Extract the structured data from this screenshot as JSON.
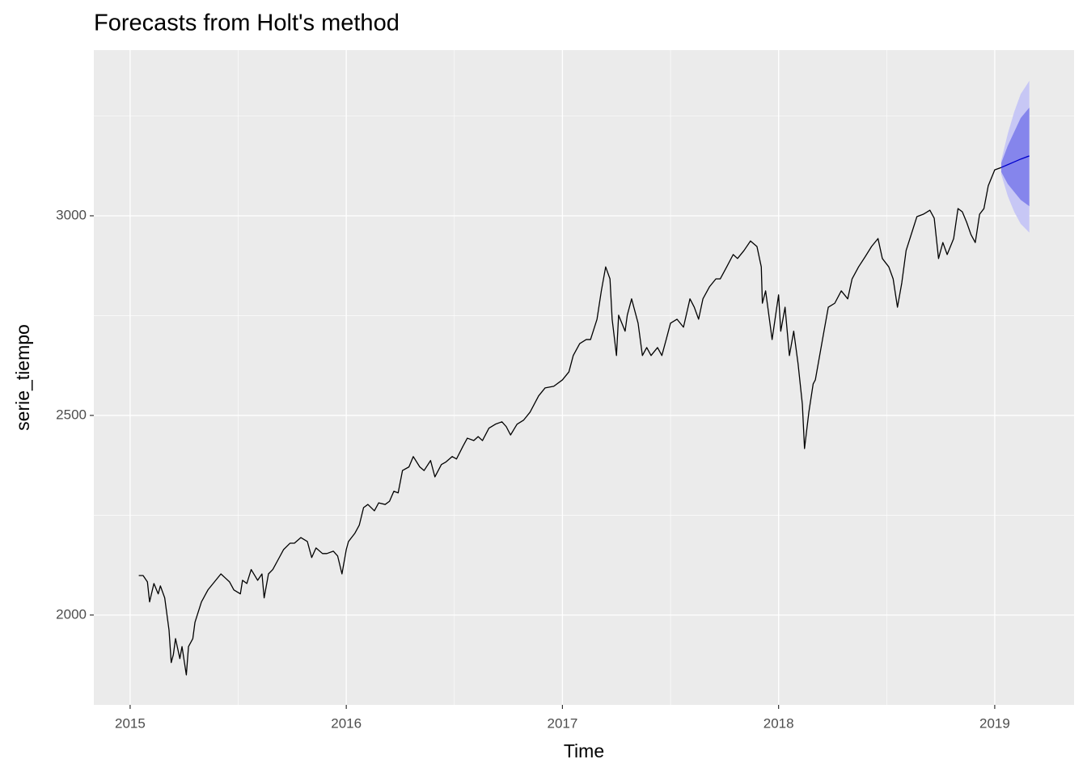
{
  "chart_data": {
    "type": "line",
    "title": "Forecasts from Holt's method",
    "xlabel": "Time",
    "ylabel": "serie_tiempo",
    "xlim": [
      2014.832,
      2019.367
    ],
    "ylim": [
      1775,
      3415
    ],
    "xticks": [
      2015,
      2016,
      2017,
      2018,
      2019
    ],
    "yticks": [
      2000,
      2500,
      3000
    ],
    "x_minor_ticks": [
      2015.5,
      2016.5,
      2017.5,
      2018.5
    ],
    "y_minor_ticks": [
      2250,
      2750,
      3250
    ],
    "grid": true,
    "series": [
      {
        "color": "#000000",
        "x": [
          2015.04,
          2015.06,
          2015.08,
          2015.09,
          2015.11,
          2015.13,
          2015.14,
          2015.16,
          2015.18,
          2015.19,
          2015.2,
          2015.21,
          2015.23,
          2015.24,
          2015.26,
          2015.27,
          2015.29,
          2015.3,
          2015.33,
          2015.34,
          2015.36,
          2015.39,
          2015.42,
          2015.44,
          2015.46,
          2015.48,
          2015.51,
          2015.52,
          2015.54,
          2015.56,
          2015.59,
          2015.61,
          2015.62,
          2015.64,
          2015.66,
          2015.69,
          2015.71,
          2015.74,
          2015.76,
          2015.79,
          2015.82,
          2015.84,
          2015.86,
          2015.89,
          2015.91,
          2015.94,
          2015.96,
          2015.98,
          2016.0,
          2016.01,
          2016.04,
          2016.06,
          2016.08,
          2016.1,
          2016.13,
          2016.15,
          2016.18,
          2016.2,
          2016.22,
          2016.24,
          2016.26,
          2016.29,
          2016.31,
          2016.34,
          2016.36,
          2016.39,
          2016.41,
          2016.44,
          2016.46,
          2016.49,
          2016.51,
          2016.54,
          2016.56,
          2016.59,
          2016.61,
          2016.63,
          2016.66,
          2016.69,
          2016.72,
          2016.74,
          2016.76,
          2016.79,
          2016.82,
          2016.85,
          2016.89,
          2016.92,
          2016.96,
          2017.0,
          2017.03,
          2017.05,
          2017.08,
          2017.11,
          2017.13,
          2017.16,
          2017.18,
          2017.2,
          2017.22,
          2017.23,
          2017.25,
          2017.26,
          2017.29,
          2017.3,
          2017.32,
          2017.35,
          2017.37,
          2017.39,
          2017.41,
          2017.44,
          2017.46,
          2017.48,
          2017.5,
          2017.53,
          2017.56,
          2017.59,
          2017.61,
          2017.63,
          2017.65,
          2017.68,
          2017.71,
          2017.73,
          2017.76,
          2017.79,
          2017.81,
          2017.84,
          2017.87,
          2017.9,
          2017.92,
          2017.925,
          2017.94,
          2017.96,
          2017.97,
          2018.0,
          2018.01,
          2018.03,
          2018.05,
          2018.07,
          2018.09,
          2018.11,
          2018.12,
          2018.14,
          2018.16,
          2018.17,
          2018.19,
          2018.21,
          2018.23,
          2018.26,
          2018.29,
          2018.32,
          2018.34,
          2018.37,
          2018.4,
          2018.43,
          2018.46,
          2018.48,
          2018.51,
          2018.53,
          2018.55,
          2018.57,
          2018.59,
          2018.62,
          2018.64,
          2018.67,
          2018.7,
          2018.72,
          2018.74,
          2018.76,
          2018.78,
          2018.81,
          2018.83,
          2018.85,
          2018.87,
          2018.89,
          2018.91,
          2018.93,
          2018.95,
          2018.97,
          2019.0,
          2019.03
        ],
        "values": [
          2099,
          2099,
          2083,
          2033,
          2079,
          2053,
          2073,
          2043,
          1962,
          1881,
          1901,
          1941,
          1891,
          1921,
          1850,
          1921,
          1941,
          1982,
          2033,
          2043,
          2063,
          2083,
          2103,
          2093,
          2083,
          2063,
          2053,
          2087,
          2079,
          2114,
          2087,
          2103,
          2043,
          2103,
          2114,
          2144,
          2164,
          2180,
          2180,
          2194,
          2184,
          2144,
          2168,
          2154,
          2154,
          2160,
          2148,
          2103,
          2164,
          2184,
          2205,
          2225,
          2269,
          2277,
          2261,
          2281,
          2277,
          2285,
          2310,
          2306,
          2362,
          2371,
          2397,
          2371,
          2362,
          2387,
          2346,
          2377,
          2383,
          2397,
          2391,
          2423,
          2443,
          2437,
          2447,
          2437,
          2468,
          2478,
          2484,
          2472,
          2451,
          2478,
          2488,
          2508,
          2549,
          2569,
          2573,
          2589,
          2609,
          2650,
          2680,
          2690,
          2690,
          2741,
          2812,
          2872,
          2842,
          2741,
          2650,
          2751,
          2711,
          2751,
          2792,
          2731,
          2650,
          2670,
          2650,
          2670,
          2650,
          2690,
          2731,
          2741,
          2721,
          2792,
          2771,
          2741,
          2792,
          2822,
          2842,
          2842,
          2872,
          2903,
          2893,
          2913,
          2937,
          2923,
          2872,
          2781,
          2812,
          2731,
          2690,
          2802,
          2711,
          2771,
          2650,
          2711,
          2630,
          2528,
          2417,
          2508,
          2579,
          2589,
          2650,
          2711,
          2771,
          2781,
          2812,
          2792,
          2842,
          2872,
          2897,
          2923,
          2943,
          2893,
          2872,
          2842,
          2771,
          2832,
          2913,
          2964,
          2998,
          3004,
          3014,
          2994,
          2893,
          2933,
          2903,
          2943,
          3018,
          3010,
          2984,
          2953,
          2933,
          3004,
          3018,
          3075,
          3115,
          3121
        ]
      }
    ],
    "forecast": {
      "x": [
        2019.03,
        2019.06,
        2019.09,
        2019.12,
        2019.16
      ],
      "mean": [
        3121,
        3128,
        3135,
        3142,
        3150
      ],
      "lo80": [
        3110,
        3080,
        3060,
        3040,
        3024
      ],
      "hi80": [
        3132,
        3175,
        3210,
        3245,
        3271
      ],
      "lo95": [
        3104,
        3050,
        3010,
        2980,
        2958
      ],
      "hi95": [
        3138,
        3205,
        3260,
        3305,
        3338
      ],
      "color": "#0000cc",
      "color80": "#8585ec",
      "color95": "#c7c7f5"
    }
  }
}
